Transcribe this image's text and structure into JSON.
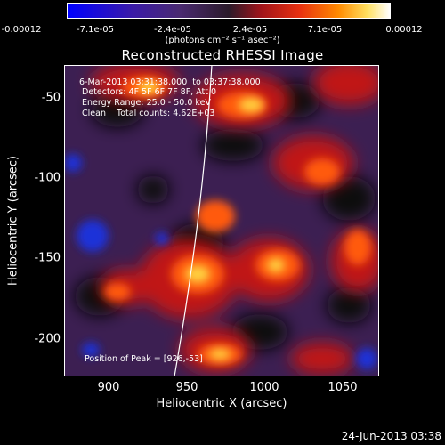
{
  "colorbar": {
    "ticks": [
      "-0.00012",
      "-7.1e-05",
      "-2.4e-05",
      "2.4e-05",
      "7.1e-05",
      "0.00012"
    ],
    "unit_label": "(photons cm⁻² s⁻¹ asec⁻²)"
  },
  "plot": {
    "title": "Reconstructed RHESSI Image",
    "x_label": "Heliocentric X (arcsec)",
    "y_label": "Heliocentric Y (arcsec)",
    "x_ticks": [
      "900",
      "950",
      "1000",
      "1050"
    ],
    "y_ticks": [
      "-50",
      "-100",
      "-150",
      "-200"
    ],
    "annotations": {
      "time_range": "6-Mar-2013 03:31:38.000  to 03:37:38.000",
      "detectors": "Detectors: 4F 5F 6F 7F 8F, Att 0",
      "energy": "Energy Range: 25.0 - 50.0 keV",
      "method": "Clean    Total counts: 4.62E+03",
      "peak": "Position of Peak = [926,-53]"
    }
  },
  "footer": {
    "date": "24-Jun-2013 03:38"
  }
}
